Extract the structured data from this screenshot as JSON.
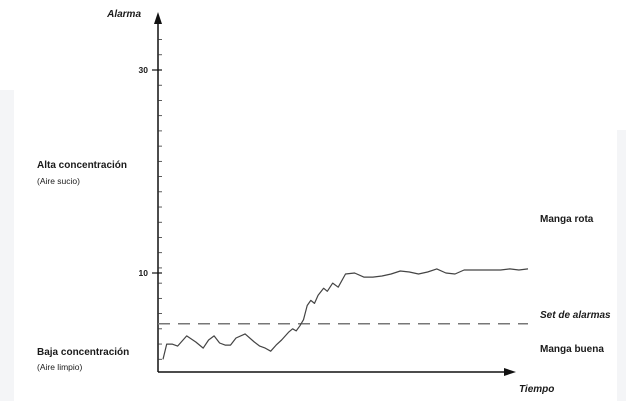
{
  "chart_data": {
    "type": "line",
    "y_axis_title": "Alarma",
    "x_axis_title": "Tiempo",
    "y_ticks": [
      {
        "value": 30,
        "label": "30"
      },
      {
        "value": 10,
        "label": "10"
      }
    ],
    "ylim": [
      1,
      35
    ],
    "minor_tick_step": 1.5,
    "threshold": {
      "value": 5,
      "label": "Set de alarmas",
      "style": "dashed"
    },
    "left_labels": {
      "high": {
        "title": "Alta concentración",
        "subtitle": "(Aire sucio)"
      },
      "low": {
        "title": "Baja concentración",
        "subtitle": "(Aire limpio)"
      }
    },
    "right_labels": {
      "broken": "Manga rota",
      "good": "Manga buena"
    },
    "series": [
      {
        "x": [
          0,
          2,
          5,
          8,
          13,
          18,
          22,
          25,
          28,
          31,
          34,
          37,
          40,
          45,
          50,
          53,
          56,
          59,
          62,
          65,
          67,
          69,
          71,
          73,
          75,
          77,
          79,
          81,
          83,
          85,
          88,
          90,
          93,
          96,
          100,
          105,
          110,
          115,
          120,
          125,
          130,
          135,
          140,
          145,
          150,
          155,
          160,
          165,
          170,
          175,
          180,
          185,
          190,
          195,
          200
        ],
        "y": [
          1.5,
          3.0,
          3.0,
          2.8,
          3.8,
          3.2,
          2.6,
          3.4,
          3.8,
          3.1,
          2.9,
          2.9,
          3.6,
          4.0,
          3.2,
          2.8,
          2.6,
          2.3,
          2.9,
          3.4,
          3.8,
          4.2,
          4.5,
          4.3,
          4.8,
          5.4,
          6.8,
          7.3,
          7.0,
          7.8,
          8.5,
          8.2,
          9.0,
          8.6,
          9.9,
          10.0,
          9.6,
          9.6,
          9.7,
          9.9,
          10.2,
          10.1,
          9.9,
          10.1,
          10.4,
          10.0,
          9.9,
          10.3,
          10.3,
          10.3,
          10.3,
          10.3,
          10.4,
          10.3,
          10.4
        ]
      }
    ]
  }
}
